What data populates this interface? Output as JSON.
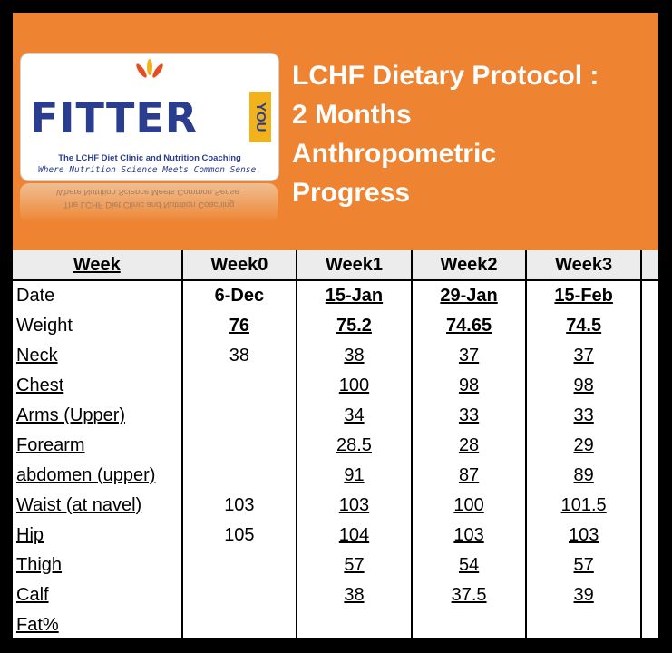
{
  "logo": {
    "brand": "FITTER",
    "brand_badge": "YOU",
    "tagline": "The LCHF Diet Clinic and Nutrition Coaching",
    "motto": "Where Nutrition Science Meets Common Sense."
  },
  "title": {
    "line1": "LCHF Dietary Protocol :",
    "line2": "2 Months",
    "line3": "Anthropometric",
    "line4": "Progress"
  },
  "colors": {
    "banner": "#ee8431",
    "brand_blue": "#2a3d8f",
    "badge_yellow": "#f2b21c",
    "leaf_red": "#e94c23",
    "header_row": "#ececec"
  },
  "table": {
    "columns": [
      "Week",
      "Week0",
      "Week1",
      "Week2",
      "Week3"
    ],
    "rows": [
      {
        "label": "Date",
        "values": [
          "6-Dec",
          "15-Jan",
          "29-Jan",
          "15-Feb"
        ]
      },
      {
        "label": "Weight",
        "values": [
          "76",
          "75.2",
          "74.65",
          "74.5"
        ]
      },
      {
        "label": "Neck",
        "values": [
          "38",
          "38",
          "37",
          "37"
        ]
      },
      {
        "label": "Chest",
        "values": [
          "",
          "100",
          "98",
          "98"
        ]
      },
      {
        "label": "Arms (Upper)",
        "values": [
          "",
          "34",
          "33",
          "33"
        ]
      },
      {
        "label": "Forearm",
        "values": [
          "",
          "28.5",
          "28",
          "29"
        ]
      },
      {
        "label": "abdomen (upper)",
        "values": [
          "",
          "91",
          "87",
          "89"
        ]
      },
      {
        "label": "Waist (at navel)",
        "values": [
          "103",
          "103",
          "100",
          "101.5"
        ]
      },
      {
        "label": "Hip",
        "values": [
          "105",
          "104",
          "103",
          "103"
        ]
      },
      {
        "label": "Thigh",
        "values": [
          "",
          "57",
          "54",
          "57"
        ]
      },
      {
        "label": "Calf",
        "values": [
          "",
          "38",
          "37.5",
          "39"
        ]
      },
      {
        "label": "Fat%",
        "values": [
          "",
          "",
          "",
          ""
        ]
      }
    ]
  }
}
